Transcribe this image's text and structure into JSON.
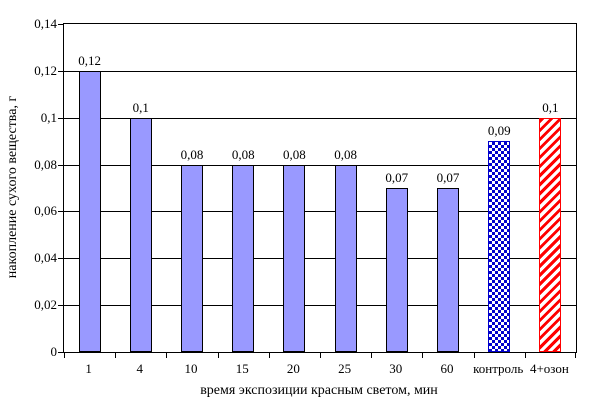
{
  "chart_data": {
    "type": "bar",
    "title": "",
    "xlabel": "время экспозиции красным светом, мин",
    "ylabel": "накопление сухого вещества, г",
    "categories": [
      "1",
      "4",
      "10",
      "15",
      "20",
      "25",
      "30",
      "60",
      "контроль",
      "4+озон"
    ],
    "values": [
      0.12,
      0.1,
      0.08,
      0.08,
      0.08,
      0.08,
      0.07,
      0.07,
      0.09,
      0.1
    ],
    "value_labels": [
      "0,12",
      "0,1",
      "0,08",
      "0,08",
      "0,08",
      "0,08",
      "0,07",
      "0,07",
      "0,09",
      "0,1"
    ],
    "bar_patterns": [
      "solid",
      "solid",
      "solid",
      "solid",
      "solid",
      "solid",
      "solid",
      "solid",
      "checker",
      "stripe"
    ],
    "ylim": [
      0,
      0.14
    ],
    "y_tick_step": 0.02,
    "y_tick_labels": [
      "0",
      "0,02",
      "0,04",
      "0,06",
      "0,08",
      "0,1",
      "0,12",
      "0,14"
    ],
    "grid": "horizontal",
    "legend": "none",
    "colors": {
      "background": "#FFFFFF",
      "text": "#000000",
      "gridline": "#000000",
      "bar_fill": "#9999FF",
      "bar_border": "#000000",
      "checker_fg": "#0000CC",
      "stripe_fg": "#FF0000",
      "pattern_bg": "#FFFFFF"
    }
  }
}
